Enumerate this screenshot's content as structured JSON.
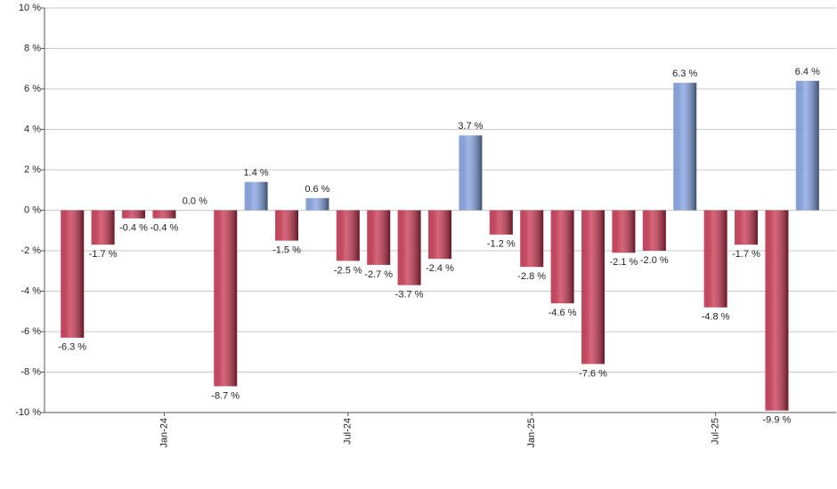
{
  "chart_data": {
    "type": "bar",
    "categories": [
      null,
      null,
      null,
      "Jan-24",
      null,
      null,
      null,
      null,
      null,
      "Jul-24",
      null,
      null,
      null,
      null,
      null,
      "Jan-25",
      null,
      null,
      null,
      null,
      null,
      "Jul-25",
      null,
      null,
      null
    ],
    "values": [
      -6.3,
      -1.7,
      -0.4,
      -0.4,
      0.0,
      -8.7,
      1.4,
      -1.5,
      0.6,
      -2.5,
      -2.7,
      -3.7,
      -2.4,
      3.7,
      -1.2,
      -2.8,
      -4.6,
      -7.6,
      -2.1,
      -2.0,
      6.3,
      -4.8,
      -1.7,
      -9.9,
      6.4
    ],
    "value_labels": [
      "-6.3 %",
      "-1.7 %",
      "-0.4 %",
      "-0.4 %",
      "0.0 %",
      "-8.7 %",
      "1.4 %",
      "-1.5 %",
      "0.6 %",
      "-2.5 %",
      "-2.7 %",
      "-3.7 %",
      "-2.4 %",
      "3.7 %",
      "-1.2 %",
      "-2.8 %",
      "-4.6 %",
      "-7.6 %",
      "-2.1 %",
      "-2.0 %",
      "6.3 %",
      "-4.8 %",
      "-1.7 %",
      "-9.9 %",
      "6.4 %"
    ],
    "positive_color": "#7f9fe2",
    "negative_color": "#c8304c",
    "ylim": [
      -10,
      10
    ],
    "yticks": [
      {
        "value": -10,
        "label": "-10 %"
      },
      {
        "value": -8,
        "label": "-8 %"
      },
      {
        "value": -6,
        "label": "-6 %"
      },
      {
        "value": -4,
        "label": "-4 %"
      },
      {
        "value": -2,
        "label": "-2 %"
      },
      {
        "value": 0,
        "label": "0 %"
      },
      {
        "value": 2,
        "label": "2 %"
      },
      {
        "value": 4,
        "label": "4 %"
      },
      {
        "value": 6,
        "label": "6 %"
      },
      {
        "value": 8,
        "label": "8 %"
      },
      {
        "value": 10,
        "label": "10 %"
      }
    ],
    "grid": true
  }
}
